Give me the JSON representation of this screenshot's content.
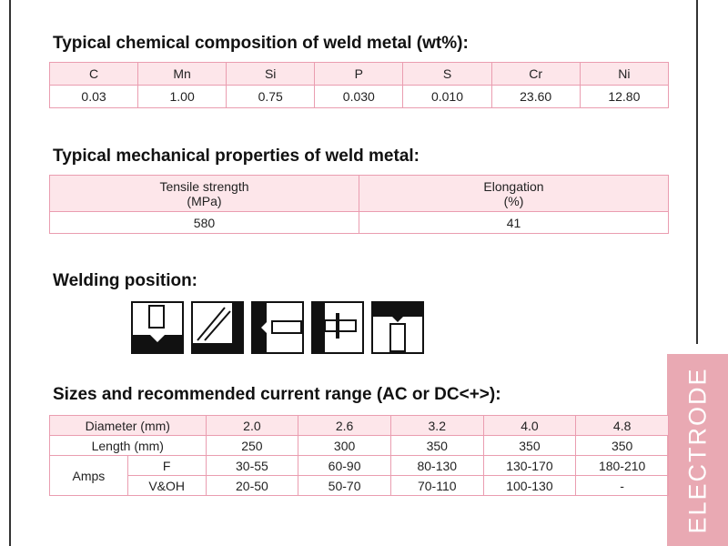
{
  "side_tab": {
    "label": "ELECTRODE"
  },
  "chem": {
    "title": "Typical chemical composition of weld metal (wt%):",
    "headers": [
      "C",
      "Mn",
      "Si",
      "P",
      "S",
      "Cr",
      "Ni"
    ],
    "values": [
      "0.03",
      "1.00",
      "0.75",
      "0.030",
      "0.010",
      "23.60",
      "12.80"
    ]
  },
  "mech": {
    "title": "Typical mechanical properties of weld metal:",
    "tensile_label": "Tensile strength",
    "tensile_unit": "(MPa)",
    "elong_label": "Elongation",
    "elong_unit": "(%)",
    "tensile_value": "580",
    "elong_value": "41"
  },
  "positions": {
    "title": "Welding position:",
    "icons": [
      "flat-position-icon",
      "horizontal-fillet-position-icon",
      "horizontal-position-icon",
      "vertical-position-icon",
      "overhead-position-icon"
    ]
  },
  "sizes": {
    "title": "Sizes and recommended current range (AC or DC<+>):",
    "diameter_label": "Diameter (mm)",
    "length_label": "Length (mm)",
    "amps_label": "Amps",
    "f_label": "F",
    "voh_label": "V&OH",
    "diameters": [
      "2.0",
      "2.6",
      "3.2",
      "4.0",
      "4.8"
    ],
    "lengths": [
      "250",
      "300",
      "350",
      "350",
      "350"
    ],
    "f_amps": [
      "30-55",
      "60-90",
      "80-130",
      "130-170",
      "180-210"
    ],
    "voh_amps": [
      "20-50",
      "50-70",
      "70-110",
      "100-130",
      "-"
    ]
  }
}
